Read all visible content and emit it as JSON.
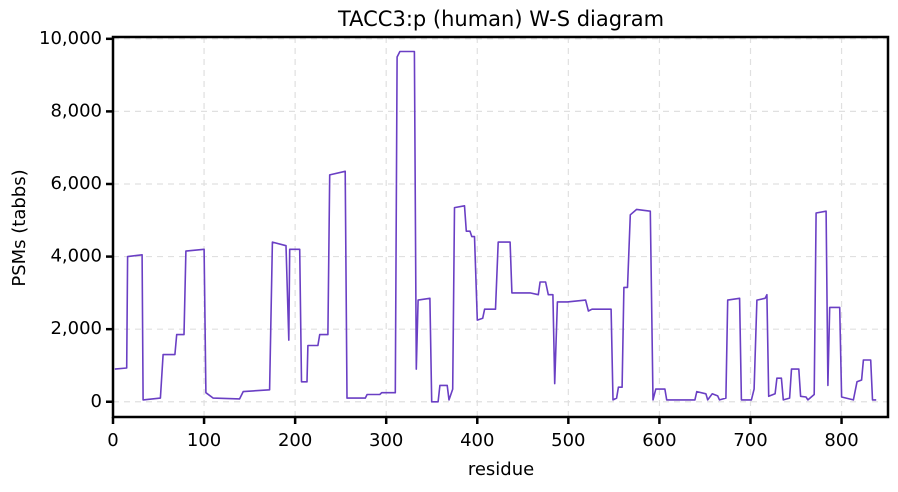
{
  "chart_data": {
    "type": "line",
    "title": "TACC3:p (human) W-S diagram",
    "xlabel": "residue",
    "ylabel": "PSMs (tabbs)",
    "color": "#6a3fc4",
    "grid": true,
    "xlim": [
      0,
      851
    ],
    "ylim": [
      -420,
      10050
    ],
    "xticks": [
      0,
      100,
      200,
      300,
      400,
      500,
      600,
      700,
      800
    ],
    "yticks": [
      0,
      {
        "value": 2000,
        "label": "2,000"
      },
      {
        "value": 4000,
        "label": "4,000"
      },
      {
        "value": 6000,
        "label": "6,000"
      },
      {
        "value": 8000,
        "label": "8,000"
      },
      {
        "value": 10000,
        "label": "10,000"
      }
    ],
    "x": [
      2,
      15,
      16,
      32,
      33,
      52,
      55,
      68,
      70,
      78,
      80,
      100,
      102,
      110,
      139,
      143,
      172,
      175,
      190,
      193,
      194,
      205,
      207,
      213,
      214,
      225,
      227,
      236,
      238,
      255,
      257,
      277,
      279,
      293,
      295,
      310,
      312,
      315,
      331,
      333,
      335,
      348,
      350,
      357,
      359,
      367,
      369,
      373,
      375,
      386,
      388,
      392,
      394,
      397,
      400,
      406,
      408,
      420,
      423,
      436,
      438,
      458,
      467,
      469,
      475,
      478,
      483,
      485,
      488,
      499,
      519,
      522,
      526,
      547,
      549,
      553,
      555,
      559,
      561,
      565,
      568,
      575,
      590,
      593,
      596,
      606,
      608,
      639,
      641,
      651,
      653,
      658,
      664,
      666,
      673,
      675,
      688,
      690,
      701,
      704,
      707,
      716,
      718,
      720,
      727,
      729,
      734,
      736,
      743,
      745,
      753,
      755,
      761,
      763,
      770,
      772,
      783,
      785,
      787,
      798,
      800,
      813,
      817,
      822,
      824,
      832,
      834,
      838
    ],
    "values": [
      900,
      930,
      4000,
      4050,
      50,
      100,
      1300,
      1300,
      1850,
      1850,
      4150,
      4200,
      250,
      100,
      80,
      280,
      330,
      4400,
      4300,
      1700,
      4200,
      4200,
      550,
      550,
      1550,
      1550,
      1850,
      1850,
      6250,
      6350,
      100,
      100,
      200,
      200,
      250,
      250,
      9500,
      9650,
      9650,
      900,
      2800,
      2850,
      0,
      0,
      450,
      450,
      50,
      350,
      5350,
      5400,
      4700,
      4700,
      4550,
      4550,
      2250,
      2300,
      2550,
      2550,
      4400,
      4400,
      3000,
      3000,
      2950,
      3300,
      3300,
      2950,
      2950,
      500,
      2750,
      2750,
      2800,
      2500,
      2550,
      2550,
      50,
      100,
      400,
      400,
      3150,
      3150,
      5150,
      5300,
      5250,
      50,
      350,
      350,
      50,
      50,
      280,
      220,
      50,
      220,
      160,
      50,
      100,
      2800,
      2850,
      50,
      50,
      350,
      2800,
      2850,
      2950,
      150,
      220,
      650,
      650,
      50,
      100,
      900,
      900,
      150,
      130,
      50,
      200,
      5200,
      5250,
      450,
      2600,
      2600,
      130,
      50,
      550,
      600,
      1150,
      1150,
      50,
      50
    ]
  }
}
